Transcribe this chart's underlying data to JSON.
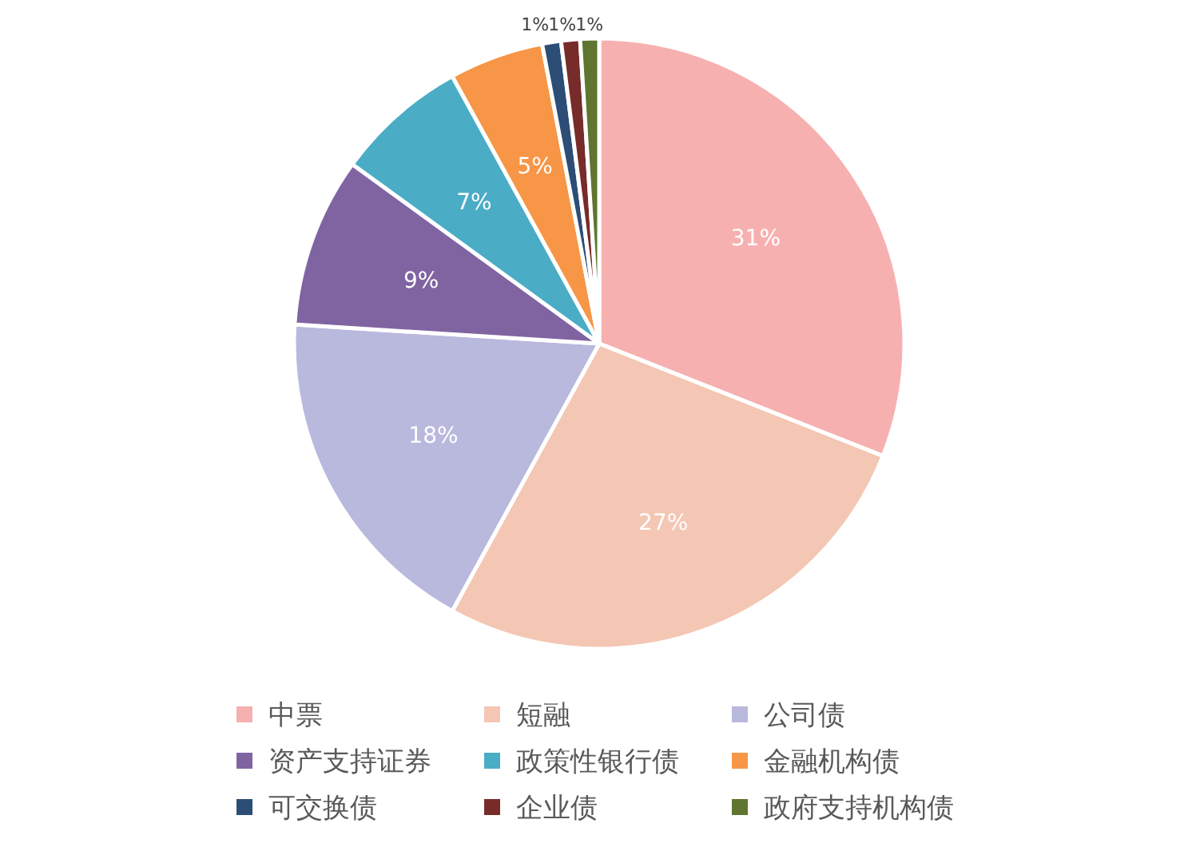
{
  "chart_data": {
    "type": "pie",
    "categories": [
      "中票",
      "短融",
      "公司债",
      "资产支持证券",
      "政策性银行债",
      "金融机构债",
      "可交换债",
      "企业债",
      "政府支持机构债"
    ],
    "values": [
      31,
      27,
      18,
      9,
      7,
      5,
      1,
      1,
      1
    ],
    "colors": [
      "#f7b0b0",
      "#f4c6b4",
      "#b9b9de",
      "#8064a2",
      "#4bacc6",
      "#f79646",
      "#2c4d75",
      "#772c2a",
      "#5f7530"
    ],
    "value_labels": [
      "31%",
      "27%",
      "18%",
      "9%",
      "7%",
      "5%",
      "1%",
      "1%",
      "1%"
    ],
    "legend": "bottom"
  }
}
